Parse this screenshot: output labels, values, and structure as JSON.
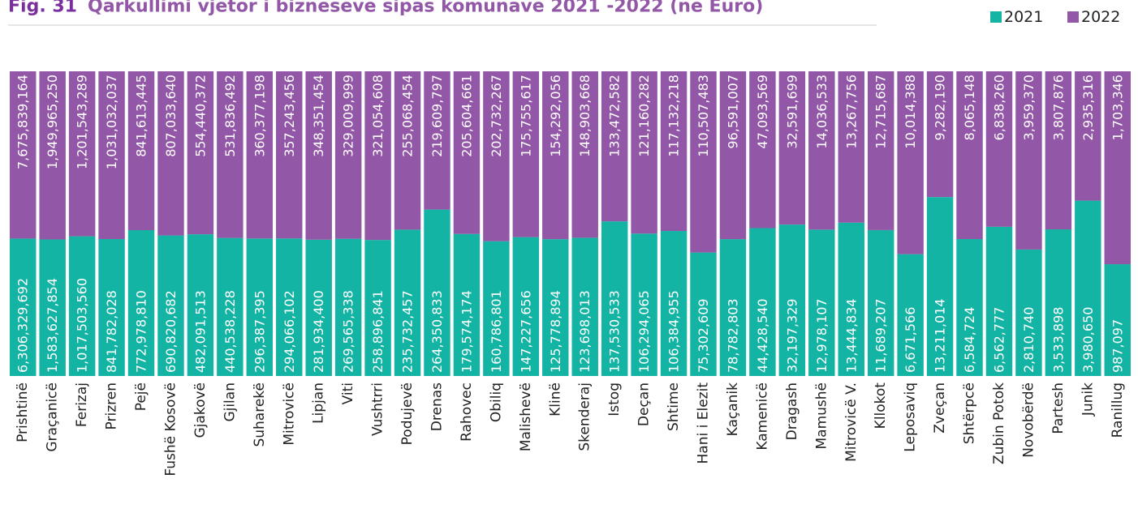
{
  "chart_data": {
    "type": "stacked_bar_100",
    "title_prefix": "Fig. 31",
    "title": "Qarkullimi vjetor i bizneseve sipas komunave 2021 -2022 (në Euro)",
    "categories": [
      "Prishtinë",
      "Graçanicë",
      "Ferizaj",
      "Prizren",
      "Pejë",
      "Fushë Kosovë",
      "Gjakovë",
      "Gjilan",
      "Suharekë",
      "Mitrovicë",
      "Lipjan",
      "Viti",
      "Vushtrri",
      "Podujevë",
      "Drenas",
      "Rahovec",
      "Obiliq",
      "Malishevë",
      "Klinë",
      "Skenderaj",
      "Istog",
      "Deçan",
      "Shtime",
      "Hani i Elezit",
      "Kaçanik",
      "Kamenicë",
      "Dragash",
      "Mamushë",
      "Mitrovicë V.",
      "Kllokot",
      "Leposaviq",
      "Zveçan",
      "Shtërpcë",
      "Zubin Potok",
      "Novobërdë",
      "Partesh",
      "Junik",
      "Ranillug"
    ],
    "series": [
      {
        "name": "2021",
        "color": "#14b4a4",
        "values": [
          6306329692,
          1583627854,
          1017503560,
          841782028,
          772978810,
          690820682,
          482091513,
          440538228,
          296387395,
          294066102,
          281934400,
          269565338,
          258896841,
          235732457,
          264350833,
          179574174,
          160786801,
          147227656,
          125778894,
          123698013,
          137530533,
          106294065,
          106384955,
          75302609,
          78782803,
          44428540,
          32197329,
          12978107,
          13444834,
          11689207,
          6671566,
          13211014,
          6584724,
          6562777,
          2810740,
          3533898,
          3980650,
          987097
        ],
        "value_labels": [
          "6,306,329,692",
          "1,583,627,854",
          "1,017,503,560",
          "841,782,028",
          "772,978,810",
          "690,820,682",
          "482,091,513",
          "440,538,228",
          "296,387,395",
          "294,066,102",
          "281,934,400",
          "269,565,338",
          "258,896,841",
          "235,732,457",
          "264,350,833",
          "179,574,174",
          "160,786,801",
          "147,227,656",
          "125,778,894",
          "123,698,013",
          "137,530,533",
          "106,294,065",
          "106,384,955",
          "75,302,609",
          "78,782,803",
          "44,428,540",
          "32,197,329",
          "12,978,107",
          "13,444,834",
          "11,689,207",
          "6,671,566",
          "13,211,014",
          "6,584,724",
          "6,562,777",
          "2,810,740",
          "3,533,898",
          "3,980,650",
          "987,097"
        ]
      },
      {
        "name": "2022",
        "color": "#9257a6",
        "values": [
          7675839164,
          1949965250,
          1201543289,
          1031032037,
          841613445,
          807033640,
          554440372,
          531836492,
          360377198,
          357243456,
          348351454,
          329009999,
          321054608,
          255068454,
          219609797,
          205604661,
          202732267,
          175755617,
          154292056,
          148903668,
          133472582,
          121160282,
          117132218,
          110507483,
          96591007,
          47093569,
          32591699,
          14036533,
          13267756,
          12715687,
          10014388,
          9282190,
          8065148,
          6838260,
          3959370,
          3807876,
          2935316,
          1703346
        ],
        "value_labels": [
          "7,675,839,164",
          "1,949,965,250",
          "1,201,543,289",
          "1,031,032,037",
          "841,613,445",
          "807,033,640",
          "554,440,372",
          "531,836,492",
          "360,377,198",
          "357,243,456",
          "348,351,454",
          "329,009,999",
          "321,054,608",
          "255,068,454",
          "219,609,797",
          "205,604,661",
          "202,732,267",
          "175,755,617",
          "154,292,056",
          "148,903,668",
          "133,472,582",
          "121,160,282",
          "117,132,218",
          "110,507,483",
          "96,591,007",
          "47,093,569",
          "32,591,699",
          "14,036,533",
          "13,267,756",
          "12,715,687",
          "10,014,388",
          "9,282,190",
          "8,065,148",
          "6,838,260",
          "3,959,370",
          "3,807,876",
          "2,935,316",
          "1,703,346"
        ]
      }
    ],
    "legend": "top-right"
  }
}
